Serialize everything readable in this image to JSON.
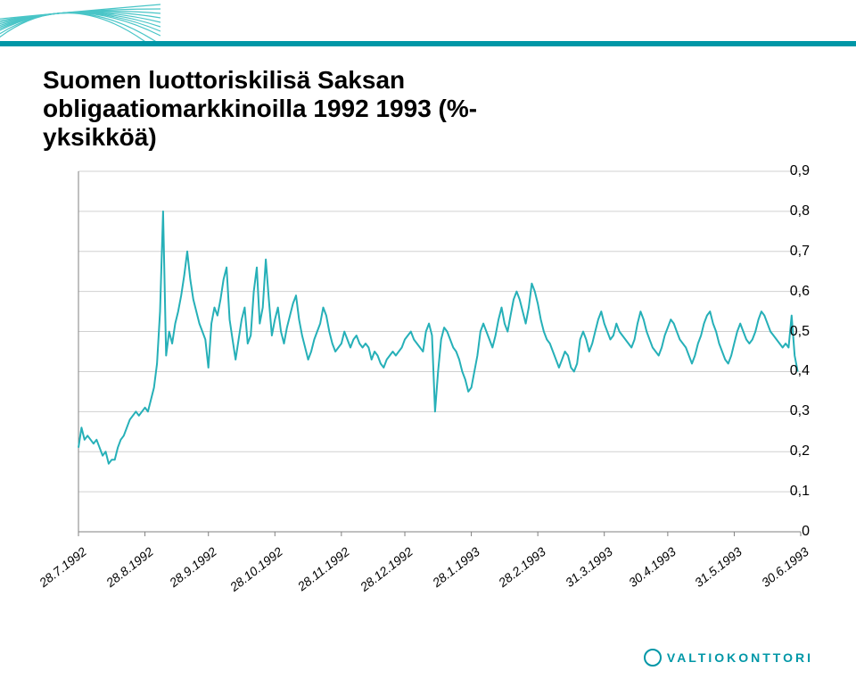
{
  "title_line1": "Suomen luottoriskilisä Saksan",
  "title_line2": "obligaatiomarkkinoilla 1992 1993 (%-",
  "title_line3": "yksikköä)",
  "logo_text": "VALTIOKONTTORI",
  "chart": {
    "type": "line",
    "background_color": "#ffffff",
    "grid_color": "#d0d0d0",
    "axis_color": "#808080",
    "line_color": "#26b0b8",
    "line_width": 2,
    "ylim": [
      0,
      0.9
    ],
    "ytick_step": 0.1,
    "ytick_labels": [
      "0",
      "0,1",
      "0,2",
      "0,3",
      "0,4",
      "0,5",
      "0,6",
      "0,7",
      "0,8",
      "0,9"
    ],
    "xtick_positions": [
      0,
      22,
      43,
      65,
      87,
      108,
      130,
      152,
      174,
      195,
      217,
      239
    ],
    "xtick_labels": [
      "28.7.1992",
      "28.8.1992",
      "28.9.1992",
      "28.10.1992",
      "28.11.1992",
      "28.12.1992",
      "28.1.1993",
      "28.2.1993",
      "31.3.1993",
      "30.4.1993",
      "31.5.1993",
      "30.6.1993"
    ],
    "x_max": 239,
    "series": [
      0.21,
      0.26,
      0.23,
      0.24,
      0.23,
      0.22,
      0.23,
      0.21,
      0.19,
      0.2,
      0.17,
      0.18,
      0.18,
      0.21,
      0.23,
      0.24,
      0.26,
      0.28,
      0.29,
      0.3,
      0.29,
      0.3,
      0.31,
      0.3,
      0.33,
      0.36,
      0.42,
      0.55,
      0.8,
      0.44,
      0.5,
      0.47,
      0.52,
      0.55,
      0.59,
      0.64,
      0.7,
      0.63,
      0.58,
      0.55,
      0.52,
      0.5,
      0.48,
      0.41,
      0.52,
      0.56,
      0.54,
      0.58,
      0.63,
      0.66,
      0.53,
      0.48,
      0.43,
      0.48,
      0.53,
      0.56,
      0.47,
      0.49,
      0.6,
      0.66,
      0.52,
      0.56,
      0.68,
      0.58,
      0.49,
      0.53,
      0.56,
      0.5,
      0.47,
      0.51,
      0.54,
      0.57,
      0.59,
      0.53,
      0.49,
      0.46,
      0.43,
      0.45,
      0.48,
      0.5,
      0.52,
      0.56,
      0.54,
      0.5,
      0.47,
      0.45,
      0.46,
      0.47,
      0.5,
      0.48,
      0.46,
      0.48,
      0.49,
      0.47,
      0.46,
      0.47,
      0.46,
      0.43,
      0.45,
      0.44,
      0.42,
      0.41,
      0.43,
      0.44,
      0.45,
      0.44,
      0.45,
      0.46,
      0.48,
      0.49,
      0.5,
      0.48,
      0.47,
      0.46,
      0.45,
      0.5,
      0.52,
      0.49,
      0.3,
      0.4,
      0.48,
      0.51,
      0.5,
      0.48,
      0.46,
      0.45,
      0.43,
      0.4,
      0.38,
      0.35,
      0.36,
      0.4,
      0.44,
      0.5,
      0.52,
      0.5,
      0.48,
      0.46,
      0.49,
      0.53,
      0.56,
      0.52,
      0.5,
      0.54,
      0.58,
      0.6,
      0.58,
      0.55,
      0.52,
      0.56,
      0.62,
      0.6,
      0.57,
      0.53,
      0.5,
      0.48,
      0.47,
      0.45,
      0.43,
      0.41,
      0.43,
      0.45,
      0.44,
      0.41,
      0.4,
      0.42,
      0.48,
      0.5,
      0.48,
      0.45,
      0.47,
      0.5,
      0.53,
      0.55,
      0.52,
      0.5,
      0.48,
      0.49,
      0.52,
      0.5,
      0.49,
      0.48,
      0.47,
      0.46,
      0.48,
      0.52,
      0.55,
      0.53,
      0.5,
      0.48,
      0.46,
      0.45,
      0.44,
      0.46,
      0.49,
      0.51,
      0.53,
      0.52,
      0.5,
      0.48,
      0.47,
      0.46,
      0.44,
      0.42,
      0.44,
      0.47,
      0.49,
      0.52,
      0.54,
      0.55,
      0.52,
      0.5,
      0.47,
      0.45,
      0.43,
      0.42,
      0.44,
      0.47,
      0.5,
      0.52,
      0.5,
      0.48,
      0.47,
      0.48,
      0.5,
      0.53,
      0.55,
      0.54,
      0.52,
      0.5,
      0.49,
      0.48,
      0.47,
      0.46,
      0.47,
      0.46,
      0.54,
      0.44,
      0.4
    ]
  },
  "decor": {
    "stripe_color": "#0097a7",
    "arc_color": "#49c5c7"
  }
}
